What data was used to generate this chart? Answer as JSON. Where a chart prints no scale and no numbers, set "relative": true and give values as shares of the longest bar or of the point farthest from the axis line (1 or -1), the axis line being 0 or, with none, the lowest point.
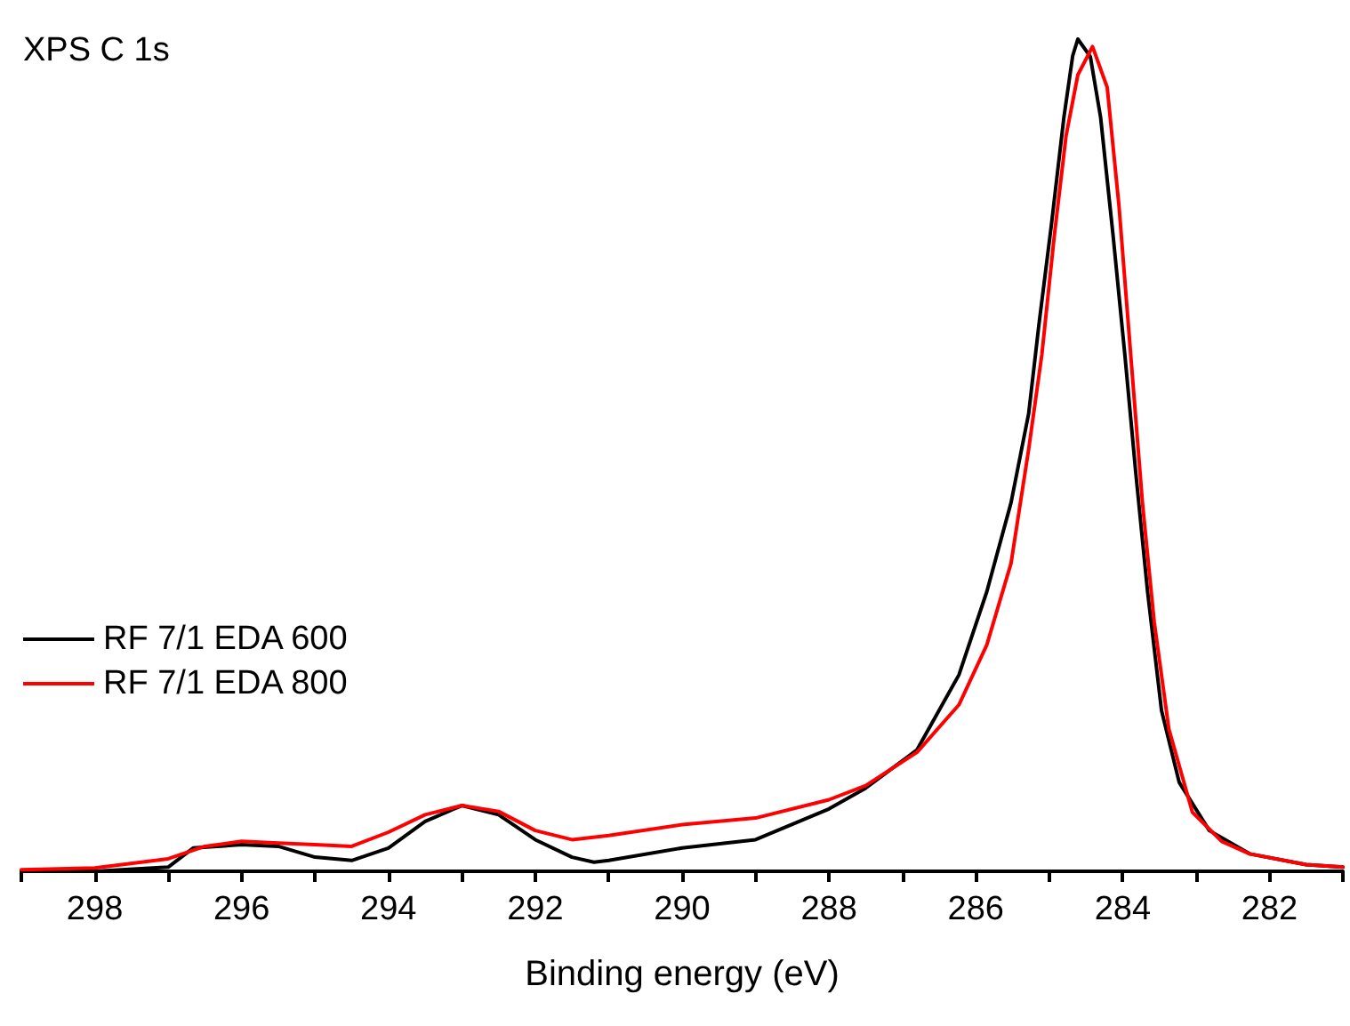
{
  "chart_data": {
    "type": "line",
    "title": "XPS C 1s",
    "xlabel": "Binding energy (eV)",
    "relative": true,
    "legend": "left",
    "marker": "none",
    "line_style": "solid",
    "grid": false,
    "xlim": [
      299,
      281
    ],
    "xticks": [
      {
        "value": 299,
        "label": null
      },
      298,
      {
        "value": 297,
        "label": null
      },
      296,
      {
        "value": 295,
        "label": null
      },
      294,
      {
        "value": 293,
        "label": null
      },
      292,
      {
        "value": 291,
        "label": null
      },
      290,
      {
        "value": 289,
        "label": null
      },
      288,
      {
        "value": 287,
        "label": null
      },
      286,
      {
        "value": 285,
        "label": null
      },
      284,
      {
        "value": 283,
        "label": null
      },
      282,
      {
        "value": 281,
        "label": null
      }
    ],
    "series": [
      {
        "name": "RF 7/1 EDA 600",
        "color": "#000000",
        "x": [
          299,
          298,
          297,
          296.66,
          296,
          295.5,
          295,
          294.5,
          294,
          293.5,
          293,
          292.5,
          292,
          291.5,
          291.2,
          291,
          290,
          289,
          288,
          287.5,
          286.8,
          286.23,
          285.85,
          285.52,
          285.28,
          285.14,
          284.97,
          284.8,
          284.68,
          284.61,
          284.44,
          284.3,
          284.13,
          283.97,
          283.82,
          283.66,
          283.47,
          283.23,
          282.82,
          282.27,
          281.5,
          281
        ],
        "values": [
          0,
          0,
          0.005,
          0.028,
          0.032,
          0.03,
          0.017,
          0.013,
          0.028,
          0.06,
          0.079,
          0.068,
          0.038,
          0.017,
          0.011,
          0.013,
          0.028,
          0.038,
          0.075,
          0.1,
          0.146,
          0.236,
          0.336,
          0.443,
          0.55,
          0.657,
          0.777,
          0.906,
          0.98,
          1,
          0.979,
          0.906,
          0.764,
          0.621,
          0.478,
          0.336,
          0.193,
          0.107,
          0.049,
          0.021,
          0.008,
          0.005
        ]
      },
      {
        "name": "RF 7/1 EDA 800",
        "color": "#ff0000",
        "x": [
          299,
          298,
          297,
          296.5,
          296,
          295.5,
          295,
          294.5,
          294,
          293.5,
          293,
          292.5,
          292,
          291.5,
          291,
          290,
          289,
          288,
          287.5,
          286.8,
          286.23,
          285.85,
          285.52,
          285.28,
          285.1,
          284.93,
          284.77,
          284.61,
          284.41,
          284.21,
          284.05,
          283.89,
          283.73,
          283.57,
          283.37,
          283.05,
          282.65,
          282.27,
          281.5,
          281
        ],
        "values": [
          0.002,
          0.004,
          0.015,
          0.03,
          0.036,
          0.034,
          0.032,
          0.03,
          0.047,
          0.068,
          0.079,
          0.072,
          0.049,
          0.038,
          0.043,
          0.056,
          0.064,
          0.086,
          0.103,
          0.143,
          0.2,
          0.272,
          0.37,
          0.507,
          0.621,
          0.764,
          0.884,
          0.957,
          0.991,
          0.942,
          0.8,
          0.621,
          0.443,
          0.3,
          0.171,
          0.071,
          0.036,
          0.021,
          0.008,
          0.005
        ]
      }
    ]
  }
}
